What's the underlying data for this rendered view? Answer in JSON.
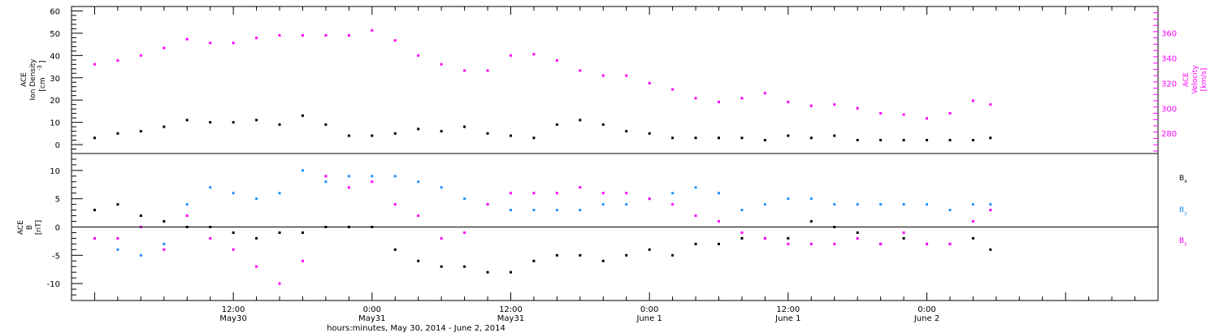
{
  "chart_data": [
    {
      "type": "scatter",
      "panel": "top",
      "ylabel_left": [
        "ACE",
        "Ion Density",
        "[cm",
        "-3",
        "]"
      ],
      "ylabel_right": [
        "ACE",
        "Velocity",
        "[km/s]"
      ],
      "ylim_left": [
        -4,
        62
      ],
      "ylim_right": [
        264,
        381
      ],
      "yticks_left": [
        0,
        10,
        20,
        30,
        40,
        50,
        60
      ],
      "yticks_right": [
        280,
        300,
        320,
        340,
        360
      ],
      "colors": {
        "density": "#000000",
        "velocity": "#ff00ff"
      },
      "series": [
        {
          "name": "Ion Density",
          "axis": "left",
          "color": "#000000",
          "x_hours": [
            0,
            2,
            4,
            6,
            8,
            10,
            12,
            14,
            16,
            18,
            20,
            22,
            24,
            26,
            28,
            30,
            32,
            34,
            36,
            38,
            40,
            42,
            44,
            46,
            48,
            50,
            52,
            54,
            56,
            58,
            60,
            62,
            64,
            66,
            68,
            70,
            72,
            74,
            76,
            77.5
          ],
          "values": [
            3,
            5,
            6,
            8,
            11,
            10,
            10,
            11,
            9,
            13,
            9,
            4,
            4,
            5,
            7,
            6,
            8,
            5,
            4,
            3,
            9,
            11,
            9,
            6,
            5,
            3,
            3,
            3,
            3,
            2,
            4,
            3,
            4,
            2,
            2,
            2,
            2,
            2,
            2,
            3
          ]
        },
        {
          "name": "Velocity",
          "axis": "right",
          "color": "#ff00ff",
          "x_hours": [
            0,
            2,
            4,
            6,
            8,
            10,
            12,
            14,
            16,
            18,
            20,
            22,
            24,
            26,
            28,
            30,
            32,
            34,
            36,
            38,
            40,
            42,
            44,
            46,
            48,
            50,
            52,
            54,
            56,
            58,
            60,
            62,
            64,
            66,
            68,
            70,
            72,
            74,
            76,
            77.5
          ],
          "values": [
            335,
            338,
            342,
            348,
            355,
            352,
            352,
            356,
            358,
            358,
            358,
            358,
            362,
            354,
            342,
            335,
            330,
            330,
            342,
            343,
            338,
            330,
            326,
            326,
            320,
            315,
            308,
            305,
            308,
            312,
            305,
            302,
            303,
            300,
            296,
            295,
            292,
            296,
            306,
            303
          ]
        }
      ]
    },
    {
      "type": "scatter",
      "panel": "bottom",
      "ylabel": [
        "ACE",
        "B",
        "[nT]"
      ],
      "ylim": [
        -13,
        13
      ],
      "yticks": [
        -10,
        -5,
        0,
        5,
        10
      ],
      "zero_line": true,
      "legend": [
        {
          "label": "B",
          "sub": "x",
          "color": "#000000"
        },
        {
          "label": "B",
          "sub": "y",
          "color": "#1e90ff"
        },
        {
          "label": "B",
          "sub": "z",
          "color": "#ff00ff"
        }
      ],
      "series": [
        {
          "name": "Bx",
          "color": "#000000",
          "x_hours": [
            0,
            2,
            4,
            6,
            8,
            10,
            12,
            14,
            16,
            18,
            20,
            22,
            24,
            26,
            28,
            30,
            32,
            34,
            36,
            38,
            40,
            42,
            44,
            46,
            48,
            50,
            52,
            54,
            56,
            58,
            60,
            62,
            64,
            66,
            68,
            70,
            72,
            74,
            76,
            77.5
          ],
          "values": [
            3,
            4,
            2,
            1,
            0,
            0,
            -1,
            -2,
            -1,
            -1,
            0,
            0,
            0,
            -4,
            -6,
            -7,
            -7,
            -8,
            -8,
            -6,
            -5,
            -5,
            -6,
            -5,
            -4,
            -5,
            -3,
            -3,
            -2,
            -2,
            -2,
            1,
            0,
            -1,
            -3,
            -2,
            -3,
            -3,
            -2,
            -4
          ]
        },
        {
          "name": "By",
          "color": "#1e90ff",
          "x_hours": [
            0,
            2,
            4,
            6,
            8,
            10,
            12,
            14,
            16,
            18,
            20,
            22,
            24,
            26,
            28,
            30,
            32,
            34,
            36,
            38,
            40,
            42,
            44,
            46,
            48,
            50,
            52,
            54,
            56,
            58,
            60,
            62,
            64,
            66,
            68,
            70,
            72,
            74,
            76,
            77.5
          ],
          "values": [
            -2,
            -4,
            -5,
            -3,
            4,
            7,
            6,
            5,
            6,
            10,
            8,
            9,
            9,
            9,
            8,
            7,
            5,
            4,
            3,
            3,
            3,
            3,
            4,
            4,
            5,
            6,
            7,
            6,
            3,
            4,
            5,
            5,
            4,
            4,
            4,
            4,
            4,
            3,
            4,
            4
          ]
        },
        {
          "name": "Bz",
          "color": "#ff00ff",
          "x_hours": [
            0,
            2,
            4,
            6,
            8,
            10,
            12,
            14,
            16,
            18,
            20,
            22,
            24,
            26,
            28,
            30,
            32,
            34,
            36,
            38,
            40,
            42,
            44,
            46,
            48,
            50,
            52,
            54,
            56,
            58,
            60,
            62,
            64,
            66,
            68,
            70,
            72,
            74,
            76,
            77.5
          ],
          "values": [
            -2,
            -2,
            0,
            -4,
            2,
            -2,
            -4,
            -7,
            -10,
            -6,
            9,
            7,
            8,
            4,
            2,
            -2,
            -1,
            4,
            6,
            6,
            6,
            7,
            6,
            6,
            5,
            4,
            2,
            1,
            -1,
            -2,
            -3,
            -3,
            -3,
            -2,
            -3,
            -1,
            -3,
            -3,
            1,
            3
          ]
        }
      ]
    }
  ],
  "x_axis": {
    "range_hours": [
      -2,
      92
    ],
    "ticks": [
      {
        "h": 12,
        "time": "12:00",
        "date": "May30"
      },
      {
        "h": 24,
        "time": "0:00",
        "date": "May31"
      },
      {
        "h": 36,
        "time": "12:00",
        "date": "May31"
      },
      {
        "h": 48,
        "time": "0:00",
        "date": "June 1"
      },
      {
        "h": 60,
        "time": "12:00",
        "date": "June 1"
      },
      {
        "h": 72,
        "time": "0:00",
        "date": "June 2"
      }
    ],
    "title": "hours:minutes, May 30, 2014 - June  2, 2014"
  }
}
